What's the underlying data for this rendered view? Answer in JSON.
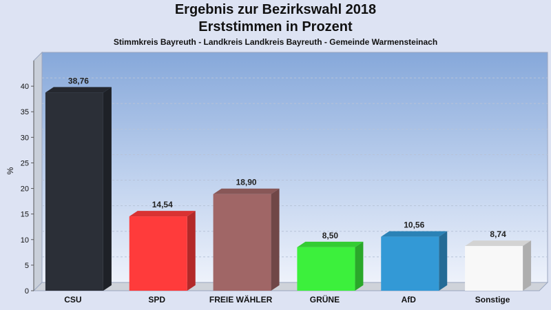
{
  "chart_data": {
    "type": "bar",
    "title": "Ergebnis zur Bezirkswahl 2018",
    "subtitle": "Erststimmen in Prozent",
    "caption": "Stimmkreis Bayreuth - Landkreis Landkreis Bayreuth - Gemeinde Warmensteinach",
    "ylabel": "%",
    "ylim": [
      0,
      45
    ],
    "yticks": [
      "0",
      "5",
      "10",
      "15",
      "20",
      "25",
      "30",
      "35",
      "40"
    ],
    "grid": true,
    "categories": [
      "CSU",
      "SPD",
      "FREIE WÄHLER",
      "GRÜNE",
      "AfD",
      "Sonstige"
    ],
    "values": [
      38.76,
      14.54,
      18.9,
      8.5,
      10.56,
      8.74
    ],
    "value_labels": [
      "38,76",
      "14,54",
      "18,90",
      "8,50",
      "10,56",
      "8,74"
    ],
    "colors": [
      "#2b2f37",
      "#ff3b3b",
      "#a06666",
      "#3cf03c",
      "#3399d6",
      "#f8f8f8"
    ]
  }
}
